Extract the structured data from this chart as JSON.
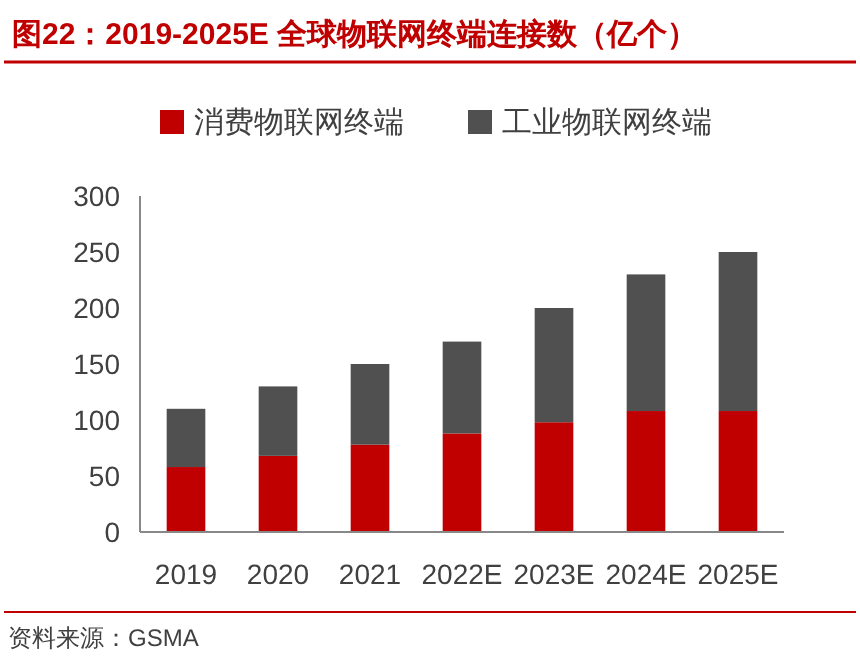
{
  "chart_data": {
    "type": "bar",
    "title": "图22：2019-2025E 全球物联网终端连接数（亿个）",
    "categories": [
      "2019",
      "2020",
      "2021",
      "2022E",
      "2023E",
      "2024E",
      "2025E"
    ],
    "stacked": true,
    "series": [
      {
        "name": "消费物联网终端",
        "color": "#c00000",
        "values": [
          58,
          68,
          78,
          88,
          98,
          108,
          108
        ]
      },
      {
        "name": "工业物联网终端",
        "color": "#505050",
        "values": [
          52,
          62,
          72,
          82,
          102,
          122,
          142
        ]
      }
    ],
    "ylim": [
      0,
      300
    ],
    "yticks": [
      0,
      50,
      100,
      150,
      200,
      250,
      300
    ],
    "grid": false,
    "legend": "top",
    "annotations": [
      "资料来源：GSMA"
    ]
  }
}
